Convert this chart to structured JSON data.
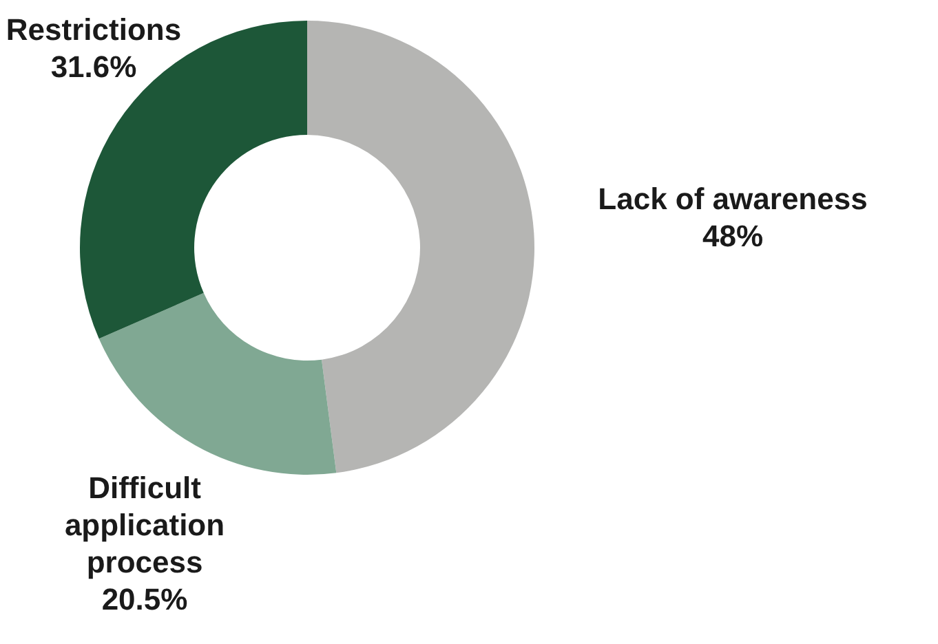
{
  "chart_data": {
    "type": "donut",
    "categories": [
      "Lack of awareness",
      "Difficult application process",
      "Restrictions"
    ],
    "values": [
      48,
      20.5,
      31.6
    ],
    "colors": [
      "#b5b5b3",
      "#80a893",
      "#1d5738"
    ],
    "value_labels": [
      "48%",
      "20.5%",
      "31.6%"
    ]
  }
}
